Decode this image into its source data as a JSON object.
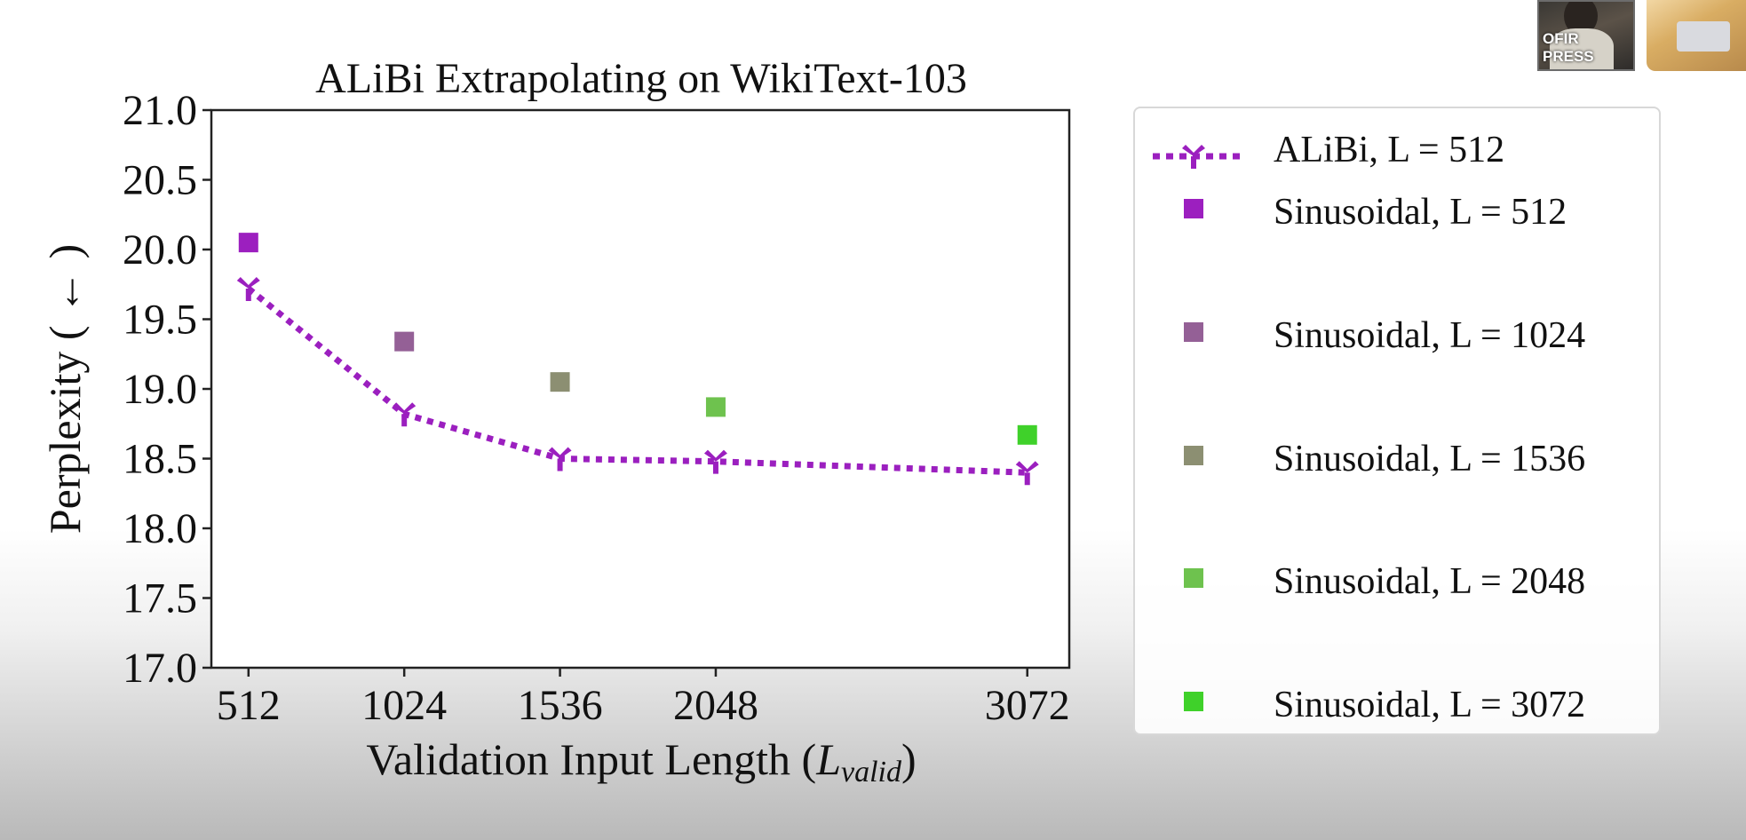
{
  "chart_data": {
    "type": "scatter",
    "title": "ALiBi Extrapolating on WikiText-103",
    "xlabel_main": "Validation Input Length (",
    "xlabel_var": "L",
    "xlabel_sub": "valid",
    "xlabel_close": ")",
    "ylabel": "Perplexity ( ← )",
    "x_ticks": [
      512,
      1024,
      1536,
      2048,
      3072
    ],
    "y_ticks": [
      "17.0",
      "17.5",
      "18.0",
      "18.5",
      "19.0",
      "19.5",
      "20.0",
      "20.5",
      "21.0"
    ],
    "xlim": [
      390,
      3210
    ],
    "ylim": [
      17.0,
      21.0
    ],
    "grid": false,
    "legend_position": "right",
    "series": [
      {
        "name": "ALiBi, L = 512",
        "style": "dotted-line-tri-marker",
        "color": "#9b1fbf",
        "x": [
          512,
          1024,
          1536,
          2048,
          3072
        ],
        "y": [
          19.72,
          18.82,
          18.5,
          18.48,
          18.4
        ]
      },
      {
        "name": "Sinusoidal, L = 512",
        "style": "square",
        "color": "#9c1fbf",
        "x": [
          512
        ],
        "y": [
          20.05
        ]
      },
      {
        "name": "Sinusoidal, L = 1024",
        "style": "square",
        "color": "#946096",
        "x": [
          1024
        ],
        "y": [
          19.34
        ]
      },
      {
        "name": "Sinusoidal, L = 1536",
        "style": "square",
        "color": "#8c8f72",
        "x": [
          1536
        ],
        "y": [
          19.05
        ]
      },
      {
        "name": "Sinusoidal, L = 2048",
        "style": "square",
        "color": "#6ec24e",
        "x": [
          2048
        ],
        "y": [
          18.87
        ]
      },
      {
        "name": "Sinusoidal, L = 3072",
        "style": "square",
        "color": "#3fd12a",
        "x": [
          3072
        ],
        "y": [
          18.67
        ]
      }
    ]
  },
  "overlay": {
    "speaker_name": "OFIR PRESS"
  }
}
